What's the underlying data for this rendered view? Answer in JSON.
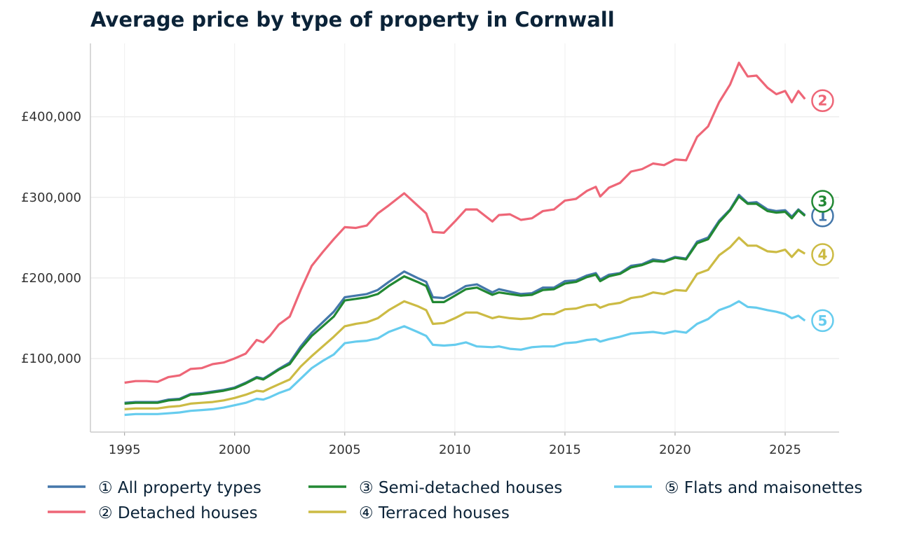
{
  "chart_data": {
    "type": "line",
    "title": "Average price by type of property in Cornwall",
    "xlabel": "",
    "ylabel": "",
    "xlim": [
      1993.45,
      2027.45
    ],
    "ylim": [
      8700,
      491000
    ],
    "x_ticks": [
      1995,
      2000,
      2005,
      2010,
      2015,
      2020,
      2025
    ],
    "x_tick_labels": [
      "1995",
      "2000",
      "2005",
      "2010",
      "2015",
      "2020",
      "2025"
    ],
    "y_ticks": [
      100000,
      200000,
      300000,
      400000
    ],
    "y_tick_labels": [
      "£100,000",
      "£200,000",
      "£300,000",
      "£400,000"
    ],
    "grid": true,
    "legend_position": "bottom",
    "x": [
      1995,
      1995.5,
      1996,
      1996.5,
      1997,
      1997.5,
      1998,
      1998.5,
      1999,
      1999.5,
      2000,
      2000.5,
      2001,
      2001.3,
      2001.6,
      2002,
      2002.5,
      2003,
      2003.5,
      2004,
      2004.5,
      2005,
      2005.5,
      2006,
      2006.5,
      2007,
      2007.7,
      2008.3,
      2008.7,
      2009,
      2009.5,
      2010,
      2010.5,
      2011,
      2011.7,
      2012,
      2012.5,
      2013,
      2013.5,
      2014,
      2014.5,
      2015,
      2015.5,
      2016,
      2016.4,
      2016.6,
      2017,
      2017.5,
      2018,
      2018.5,
      2019,
      2019.5,
      2020,
      2020.5,
      2021,
      2021.5,
      2022,
      2022.5,
      2022.9,
      2023.3,
      2023.7,
      2024.2,
      2024.6,
      2025,
      2025.3,
      2025.6,
      2025.9
    ],
    "series": [
      {
        "name": "All property types",
        "legend_label": "① All property types",
        "end_label": "1",
        "color": "#4477AA",
        "values": [
          45000,
          46000,
          46000,
          46000,
          49000,
          50000,
          56000,
          57000,
          59000,
          61000,
          64000,
          70000,
          77000,
          75000,
          80000,
          87000,
          95000,
          115000,
          132000,
          145000,
          158000,
          176000,
          178000,
          180000,
          185000,
          195000,
          208000,
          200000,
          195000,
          176000,
          175000,
          182000,
          190000,
          192000,
          182000,
          186000,
          183000,
          180000,
          181000,
          188000,
          188000,
          196000,
          197000,
          203000,
          206000,
          198000,
          204000,
          206000,
          215000,
          217000,
          223000,
          221000,
          226000,
          224000,
          245000,
          250000,
          271000,
          285000,
          303000,
          293000,
          294000,
          285000,
          283000,
          284000,
          276000,
          285000,
          278000
        ],
        "end_label_value": 277000
      },
      {
        "name": "Detached houses",
        "legend_label": "② Detached houses",
        "end_label": "2",
        "color": "#EE6677",
        "values": [
          70000,
          72000,
          72000,
          71000,
          77000,
          79000,
          87000,
          88000,
          93000,
          95000,
          100000,
          106000,
          123000,
          120000,
          128000,
          142000,
          152000,
          185000,
          215000,
          232000,
          248000,
          263000,
          262000,
          265000,
          280000,
          290000,
          305000,
          290000,
          280000,
          257000,
          256000,
          270000,
          285000,
          285000,
          270000,
          278000,
          279000,
          272000,
          274000,
          283000,
          285000,
          296000,
          298000,
          308000,
          313000,
          301000,
          312000,
          318000,
          332000,
          335000,
          342000,
          340000,
          347000,
          346000,
          375000,
          388000,
          418000,
          440000,
          467000,
          450000,
          451000,
          436000,
          428000,
          432000,
          418000,
          432000,
          422000
        ],
        "end_label_value": 420000
      },
      {
        "name": "Semi-detached houses",
        "legend_label": "③ Semi-detached houses",
        "end_label": "3",
        "color": "#228833",
        "values": [
          44000,
          45000,
          45000,
          45000,
          48000,
          49000,
          55000,
          56000,
          58000,
          60000,
          63000,
          69000,
          76000,
          74000,
          79000,
          86000,
          93000,
          112000,
          128000,
          140000,
          152000,
          172000,
          174000,
          176000,
          180000,
          190000,
          202000,
          195000,
          190000,
          170000,
          170000,
          178000,
          186000,
          188000,
          179000,
          182000,
          180000,
          178000,
          179000,
          185000,
          186000,
          193000,
          195000,
          201000,
          204000,
          196000,
          202000,
          205000,
          213000,
          216000,
          221000,
          220000,
          225000,
          223000,
          243000,
          248000,
          269000,
          284000,
          301000,
          292000,
          292000,
          283000,
          281000,
          282000,
          274000,
          284000,
          277000
        ],
        "end_label_value": 295000
      },
      {
        "name": "Terraced houses",
        "legend_label": "④ Terraced houses",
        "end_label": "4",
        "color": "#CCBB44",
        "values": [
          37000,
          38000,
          38000,
          38000,
          40000,
          41000,
          44000,
          45000,
          46000,
          48000,
          51000,
          55000,
          60000,
          59000,
          63000,
          68000,
          74000,
          90000,
          103000,
          115000,
          127000,
          140000,
          143000,
          145000,
          150000,
          160000,
          171000,
          165000,
          160000,
          143000,
          144000,
          150000,
          157000,
          157000,
          150000,
          152000,
          150000,
          149000,
          150000,
          155000,
          155000,
          161000,
          162000,
          166000,
          167000,
          163000,
          167000,
          169000,
          175000,
          177000,
          182000,
          180000,
          185000,
          184000,
          205000,
          210000,
          228000,
          238000,
          250000,
          240000,
          240000,
          233000,
          232000,
          235000,
          226000,
          235000,
          230000
        ],
        "end_label_value": 229000
      },
      {
        "name": "Flats and maisonettes",
        "legend_label": "⑤ Flats and maisonettes",
        "end_label": "5",
        "color": "#66CCEE",
        "values": [
          30000,
          31000,
          31000,
          31000,
          32000,
          33000,
          35000,
          36000,
          37000,
          39000,
          42000,
          45000,
          50000,
          49000,
          52000,
          57000,
          62000,
          75000,
          88000,
          97000,
          105000,
          119000,
          121000,
          122000,
          125000,
          133000,
          140000,
          133000,
          128000,
          117000,
          116000,
          117000,
          120000,
          115000,
          114000,
          115000,
          112000,
          111000,
          114000,
          115000,
          115000,
          119000,
          120000,
          123000,
          124000,
          121000,
          124000,
          127000,
          131000,
          132000,
          133000,
          131000,
          134000,
          132000,
          143000,
          149000,
          160000,
          165000,
          171000,
          164000,
          163000,
          160000,
          158000,
          155000,
          150000,
          153000,
          147000
        ],
        "end_label_value": 147000
      }
    ],
    "draw_order": [
      0,
      1,
      3,
      4,
      2
    ]
  },
  "colors": {
    "title": "#0B2338",
    "axis": "#CCCCCC",
    "grid": "#EEEEEE",
    "tick_text": "#333333",
    "legend_text": "#0B2338"
  }
}
